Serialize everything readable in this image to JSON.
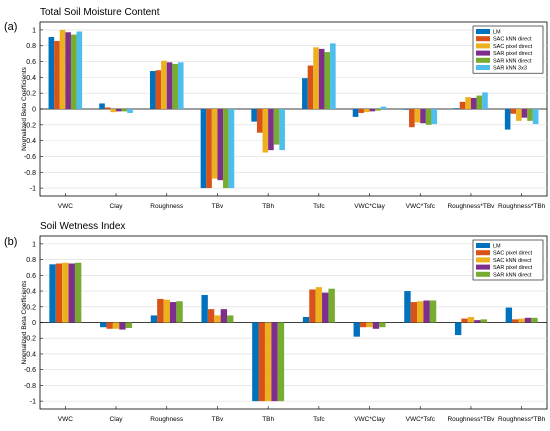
{
  "chart_data": [
    {
      "type": "bar",
      "panel": "(a)",
      "title": "Total Soil Moisture Content",
      "ylabel": "Normalized Beta Coefficients",
      "xlabel": "",
      "ylim": [
        -1.1,
        1.1
      ],
      "yticks": [
        -1,
        -0.8,
        -0.6,
        -0.4,
        -0.2,
        0,
        0.2,
        0.4,
        0.6,
        0.8,
        1
      ],
      "grid": "horizontal",
      "legend_position": "top-right",
      "categories": [
        "VWC",
        "Clay",
        "Roughness",
        "TBv",
        "TBh",
        "Tsfc",
        "VWC*Clay",
        "VWC*Tsfc",
        "Roughness*TBv",
        "Roughness*TBh"
      ],
      "series": [
        {
          "name": "LM",
          "color": "#0072BD",
          "values": [
            0.91,
            0.07,
            0.48,
            -1.0,
            -0.16,
            0.39,
            -0.1,
            -0.01,
            0.01,
            -0.26
          ]
        },
        {
          "name": "SAC kNN direct",
          "color": "#D95319",
          "values": [
            0.86,
            0.02,
            0.49,
            -1.0,
            -0.3,
            0.55,
            -0.05,
            -0.23,
            0.09,
            -0.06
          ]
        },
        {
          "name": "SAC pixel direct",
          "color": "#EDB120",
          "values": [
            1.0,
            -0.04,
            0.61,
            -0.88,
            -0.55,
            0.78,
            -0.04,
            -0.17,
            0.15,
            -0.15
          ]
        },
        {
          "name": "SAR pixel direct",
          "color": "#7E2F8E",
          "values": [
            0.97,
            -0.03,
            0.59,
            -0.9,
            -0.52,
            0.76,
            -0.03,
            -0.18,
            0.14,
            -0.11
          ]
        },
        {
          "name": "SAR kNN direct",
          "color": "#77AC30",
          "values": [
            0.94,
            -0.03,
            0.57,
            -1.0,
            -0.45,
            0.72,
            -0.02,
            -0.2,
            0.17,
            -0.15
          ]
        },
        {
          "name": "SAR kNN 3x3",
          "color": "#4DBEEE",
          "values": [
            0.98,
            -0.05,
            0.59,
            -1.0,
            -0.52,
            0.83,
            0.03,
            -0.19,
            0.21,
            -0.19
          ]
        }
      ]
    },
    {
      "type": "bar",
      "panel": "(b)",
      "title": "Soil Wetness Index",
      "ylabel": "Normalized Beta Coefficients",
      "xlabel": "",
      "ylim": [
        -1.1,
        1.1
      ],
      "yticks": [
        -1,
        -0.8,
        -0.6,
        -0.4,
        -0.2,
        0,
        0.2,
        0.4,
        0.6,
        0.8,
        1
      ],
      "grid": "horizontal",
      "legend_position": "top-right",
      "categories": [
        "VWC",
        "Clay",
        "Roughness",
        "TBv",
        "TBh",
        "Tsfc",
        "VWC*Clay",
        "VWC*Tsfc",
        "Roughness*TBv",
        "Roughness*TBh"
      ],
      "series": [
        {
          "name": "LM",
          "color": "#0072BD",
          "values": [
            0.74,
            -0.06,
            0.09,
            0.35,
            -1.0,
            0.07,
            -0.18,
            0.4,
            -0.16,
            0.19
          ]
        },
        {
          "name": "SAC pixel direct",
          "color": "#D95319",
          "values": [
            0.75,
            -0.08,
            0.3,
            0.17,
            -1.0,
            0.42,
            -0.06,
            0.26,
            0.05,
            0.04
          ]
        },
        {
          "name": "SAC kNN direct",
          "color": "#EDB120",
          "values": [
            0.76,
            -0.08,
            0.29,
            0.09,
            -1.0,
            0.45,
            -0.06,
            0.27,
            0.07,
            0.05
          ]
        },
        {
          "name": "SAR pixel direct",
          "color": "#7E2F8E",
          "values": [
            0.75,
            -0.09,
            0.26,
            0.17,
            -1.0,
            0.38,
            -0.08,
            0.28,
            0.03,
            0.06
          ]
        },
        {
          "name": "SAR kNN direct",
          "color": "#77AC30",
          "values": [
            0.76,
            -0.07,
            0.27,
            0.09,
            -1.0,
            0.43,
            -0.06,
            0.28,
            0.04,
            0.06
          ]
        }
      ]
    }
  ]
}
